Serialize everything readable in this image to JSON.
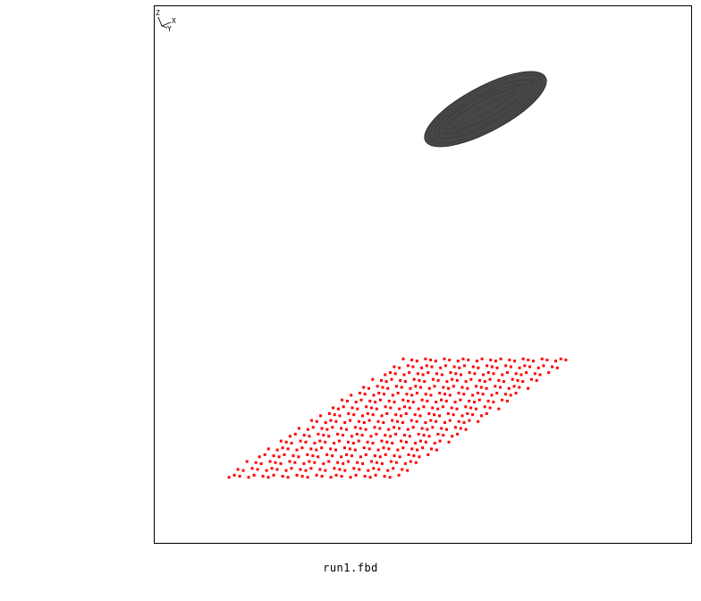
{
  "viewer": {
    "filename": "run1.fbd",
    "colors": {
      "background": "#ffffff",
      "frame": "#000000",
      "ellipsoid_fill": "#474747",
      "ellipsoid_stroke": "#2e2e2e",
      "point_cloud": "#ff0000"
    },
    "axis_triad": {
      "labels": [
        "Z",
        "Y",
        "X"
      ]
    }
  }
}
